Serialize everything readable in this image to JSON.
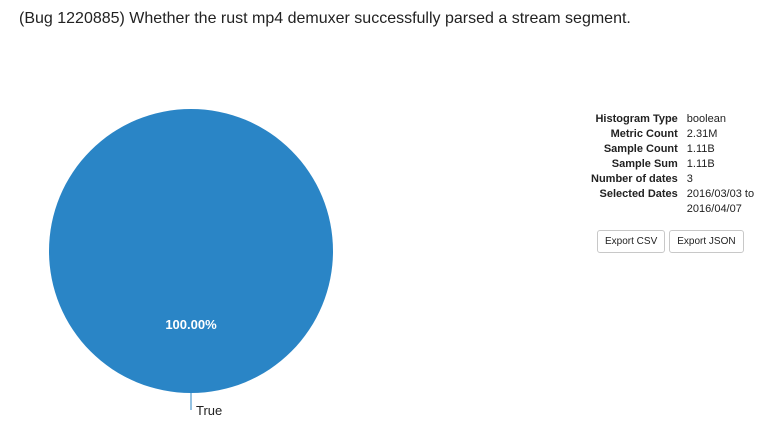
{
  "page": {
    "title": "(Bug 1220885) Whether the rust mp4 demuxer successfully parsed a stream segment."
  },
  "chart_data": {
    "type": "pie",
    "categories": [
      "True"
    ],
    "values": [
      100.0
    ],
    "data_labels": [
      "100.00%"
    ],
    "colors": [
      "#2a85c6"
    ]
  },
  "stats": [
    {
      "label": "Histogram Type",
      "value": "boolean"
    },
    {
      "label": "Metric Count",
      "value": "2.31M"
    },
    {
      "label": "Sample Count",
      "value": "1.11B"
    },
    {
      "label": "Sample Sum",
      "value": "1.11B"
    },
    {
      "label": "Number of dates",
      "value": "3"
    },
    {
      "label": "Selected Dates",
      "value": "2016/03/03 to 2016/04/07"
    }
  ],
  "buttons": {
    "export_csv": "Export CSV",
    "export_json": "Export JSON"
  }
}
